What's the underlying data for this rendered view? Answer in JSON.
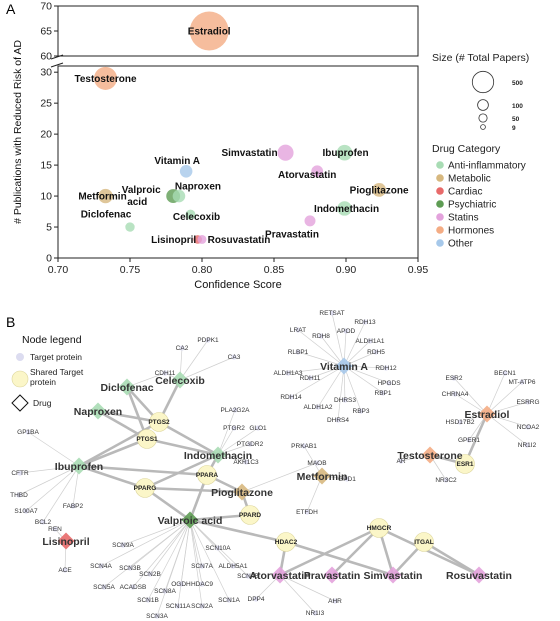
{
  "panel_a_label": "A",
  "panel_b_label": "B",
  "chart_data": {
    "type": "scatter",
    "xlabel": "Confidence Score",
    "ylabel": "# Publications with Reduced Risk of AD",
    "xlim": [
      0.7,
      0.95
    ],
    "x_ticks": [
      "0.70",
      "0.75",
      "0.80",
      "0.85",
      "0.90",
      "0.95"
    ],
    "y_ticks_upper": [
      "60",
      "65",
      "70"
    ],
    "y_ticks_lower": [
      "0",
      "5",
      "10",
      "15",
      "20",
      "25",
      "30"
    ],
    "ylim_lower": [
      0,
      31
    ],
    "ylim_upper": [
      60,
      70
    ],
    "axis_break": true,
    "grid": false,
    "size_legend": {
      "title": "Size (# Total Papers)",
      "entries": [
        {
          "label": "500",
          "value": 500
        },
        {
          "label": "100",
          "value": 100
        },
        {
          "label": "50",
          "value": 50
        },
        {
          "label": "9",
          "value": 9
        }
      ]
    },
    "category_legend": {
      "title": "Drug Category",
      "entries": [
        {
          "name": "Anti-inflammatory",
          "color": "#a8dcb4"
        },
        {
          "name": "Metabolic",
          "color": "#d7b87f"
        },
        {
          "name": "Cardiac",
          "color": "#e86a6a"
        },
        {
          "name": "Psychiatric",
          "color": "#5e9c54"
        },
        {
          "name": "Statins",
          "color": "#e3a2dc"
        },
        {
          "name": "Hormones",
          "color": "#f4ac84"
        },
        {
          "name": "Other",
          "color": "#a6c8ea"
        }
      ]
    },
    "points": [
      {
        "name": "Estradiol",
        "x": 0.805,
        "y": 65,
        "size": 500,
        "category": "Hormones"
      },
      {
        "name": "Testosterone",
        "x": 0.733,
        "y": 29,
        "size": 150,
        "category": "Hormones"
      },
      {
        "name": "Simvastatin",
        "x": 0.858,
        "y": 17,
        "size": 60,
        "category": "Statins"
      },
      {
        "name": "Ibuprofen",
        "x": 0.899,
        "y": 17,
        "size": 55,
        "category": "Anti-inflammatory"
      },
      {
        "name": "Atorvastatin",
        "x": 0.88,
        "y": 14,
        "size": 25,
        "category": "Statins"
      },
      {
        "name": "Vitamin A",
        "x": 0.789,
        "y": 14,
        "size": 30,
        "category": "Other"
      },
      {
        "name": "Pioglitazone",
        "x": 0.923,
        "y": 11,
        "size": 40,
        "category": "Metabolic"
      },
      {
        "name": "Metformin",
        "x": 0.733,
        "y": 10,
        "size": 45,
        "category": "Metabolic"
      },
      {
        "name": "Valproic acid",
        "x": 0.78,
        "y": 10,
        "size": 40,
        "category": "Psychiatric"
      },
      {
        "name": "Naproxen",
        "x": 0.784,
        "y": 10,
        "size": 30,
        "category": "Anti-inflammatory"
      },
      {
        "name": "Indomethacin",
        "x": 0.899,
        "y": 8,
        "size": 45,
        "category": "Anti-inflammatory"
      },
      {
        "name": "Celecoxib",
        "x": 0.792,
        "y": 7,
        "size": 15,
        "category": "Anti-inflammatory"
      },
      {
        "name": "Pravastatin",
        "x": 0.875,
        "y": 6,
        "size": 20,
        "category": "Statins"
      },
      {
        "name": "Diclofenac",
        "x": 0.75,
        "y": 5,
        "size": 12,
        "category": "Anti-inflammatory"
      },
      {
        "name": "Lisinopril",
        "x": 0.797,
        "y": 3,
        "size": 9,
        "category": "Cardiac"
      },
      {
        "name": "Rosuvastatin",
        "x": 0.8,
        "y": 3,
        "size": 10,
        "category": "Statins"
      }
    ]
  },
  "network": {
    "legend_title": "Node legend",
    "legend_items": [
      {
        "label": "Target protein"
      },
      {
        "label": "Shared Target protein"
      },
      {
        "label": "Drug"
      }
    ],
    "drug_nodes": [
      {
        "id": "Diclofenac",
        "label": "Diclofenac",
        "color": "#a8dcb4"
      },
      {
        "id": "Celecoxib",
        "label": "Celecoxib",
        "color": "#a8dcb4"
      },
      {
        "id": "Naproxen",
        "label": "Naproxen",
        "color": "#a8dcb4"
      },
      {
        "id": "Ibuprofen",
        "label": "Ibuprofen",
        "color": "#a8dcb4"
      },
      {
        "id": "Indomethacin",
        "label": "Indomethacin",
        "color": "#a8dcb4"
      },
      {
        "id": "Pioglitazone",
        "label": "Pioglitazone",
        "color": "#d7b87f"
      },
      {
        "id": "Metformin",
        "label": "Metformin",
        "color": "#d7b87f"
      },
      {
        "id": "ValproicAcid",
        "label": "Valproic acid",
        "color": "#5e9c54"
      },
      {
        "id": "Lisinopril",
        "label": "Lisinopril",
        "color": "#e86a6a"
      },
      {
        "id": "VitaminA",
        "label": "Vitamin A",
        "color": "#a6c8ea"
      },
      {
        "id": "Estradiol",
        "label": "Estradiol",
        "color": "#f4ac84"
      },
      {
        "id": "Testosterone",
        "label": "Testosterone",
        "color": "#f4ac84"
      },
      {
        "id": "Atorvastatin",
        "label": "Atorvastatin",
        "color": "#e3a2dc"
      },
      {
        "id": "Pravastatin",
        "label": "Pravastatin",
        "color": "#e3a2dc"
      },
      {
        "id": "Simvastatin",
        "label": "Simvastatin",
        "color": "#e3a2dc"
      },
      {
        "id": "Rosuvastatin",
        "label": "Rosuvastatin",
        "color": "#e3a2dc"
      }
    ],
    "shared_nodes": [
      {
        "id": "PTGS2",
        "label": "PTGS2"
      },
      {
        "id": "PTGS1",
        "label": "PTGS1"
      },
      {
        "id": "PPARA",
        "label": "PPARA"
      },
      {
        "id": "PPARG",
        "label": "PPARG"
      },
      {
        "id": "PPARD",
        "label": "PPARD"
      },
      {
        "id": "HDAC2",
        "label": "HDAC2"
      },
      {
        "id": "HMGCR",
        "label": "HMGCR"
      },
      {
        "id": "ITGAL",
        "label": "ITGAL"
      },
      {
        "id": "ESR1",
        "label": "ESR1"
      }
    ],
    "target_nodes": [
      {
        "id": "CA2",
        "label": "CA2"
      },
      {
        "id": "PDPK1",
        "label": "PDPK1"
      },
      {
        "id": "CA3",
        "label": "CA3"
      },
      {
        "id": "CDH11",
        "label": "CDH11"
      },
      {
        "id": "PLA2G2A",
        "label": "PLA2G2A"
      },
      {
        "id": "PTGR2",
        "label": "PTGR2"
      },
      {
        "id": "GLO1",
        "label": "GLO1"
      },
      {
        "id": "PTGDR2",
        "label": "PTGDR2"
      },
      {
        "id": "AKR1C3",
        "label": "AKR1C3"
      },
      {
        "id": "GP1BA",
        "label": "GP1BA"
      },
      {
        "id": "CFTR",
        "label": "CFTR"
      },
      {
        "id": "THBD",
        "label": "THBD"
      },
      {
        "id": "S100A7",
        "label": "S100A7"
      },
      {
        "id": "BCL2",
        "label": "BCL2"
      },
      {
        "id": "FABP2",
        "label": "FABP2"
      },
      {
        "id": "PRKAB1",
        "label": "PRKAB1"
      },
      {
        "id": "MAOB",
        "label": "MAOB"
      },
      {
        "id": "GPD1",
        "label": "GPD1"
      },
      {
        "id": "ETFDH",
        "label": "ETFDH"
      },
      {
        "id": "REN",
        "label": "REN"
      },
      {
        "id": "ACE",
        "label": "ACE"
      },
      {
        "id": "SCN9A",
        "label": "SCN9A"
      },
      {
        "id": "SCN4A",
        "label": "SCN4A"
      },
      {
        "id": "SCN3B",
        "label": "SCN3B"
      },
      {
        "id": "SCN2B",
        "label": "SCN2B"
      },
      {
        "id": "SCN7A",
        "label": "SCN7A"
      },
      {
        "id": "SCN10A",
        "label": "SCN10A"
      },
      {
        "id": "ALDH5A1",
        "label": "ALDH5A1"
      },
      {
        "id": "SCN5A",
        "label": "SCN5A"
      },
      {
        "id": "ACADSB",
        "label": "ACADSB"
      },
      {
        "id": "SCN8A",
        "label": "SCN8A"
      },
      {
        "id": "OGDH",
        "label": "OGDH"
      },
      {
        "id": "HDAC9",
        "label": "HDAC9"
      },
      {
        "id": "SCN4B",
        "label": "SCN4B"
      },
      {
        "id": "SCN1B",
        "label": "SCN1B"
      },
      {
        "id": "SCN11A",
        "label": "SCN11A"
      },
      {
        "id": "SCN2A",
        "label": "SCN2A"
      },
      {
        "id": "SCN1A",
        "label": "SCN1A"
      },
      {
        "id": "SCN3A",
        "label": "SCN3A"
      },
      {
        "id": "RETSAT",
        "label": "RETSAT"
      },
      {
        "id": "LRAT",
        "label": "LRAT"
      },
      {
        "id": "RDH13",
        "label": "RDH13"
      },
      {
        "id": "RDH8",
        "label": "RDH8"
      },
      {
        "id": "APOD",
        "label": "APOD"
      },
      {
        "id": "RLBP1",
        "label": "RLBP1"
      },
      {
        "id": "ALDH1A1",
        "label": "ALDH1A1"
      },
      {
        "id": "RDH5",
        "label": "RDH5"
      },
      {
        "id": "ALDH1A3",
        "label": "ALDH1A3"
      },
      {
        "id": "RDH11",
        "label": "RDH11"
      },
      {
        "id": "RDH12",
        "label": "RDH12"
      },
      {
        "id": "HPGDS",
        "label": "HPGDS"
      },
      {
        "id": "RBP1",
        "label": "RBP1"
      },
      {
        "id": "RDH14",
        "label": "RDH14"
      },
      {
        "id": "DHRS3",
        "label": "DHRS3"
      },
      {
        "id": "ALDH1A2",
        "label": "ALDH1A2"
      },
      {
        "id": "RBP3",
        "label": "RBP3"
      },
      {
        "id": "DHRS4",
        "label": "DHRS4"
      },
      {
        "id": "ESR2",
        "label": "ESR2"
      },
      {
        "id": "BECN1",
        "label": "BECN1"
      },
      {
        "id": "MT-ATP6",
        "label": "MT-ATP6"
      },
      {
        "id": "CHRNA4",
        "label": "CHRNA4"
      },
      {
        "id": "ESRRG",
        "label": "ESRRG"
      },
      {
        "id": "HSD17B2",
        "label": "HSD17B2"
      },
      {
        "id": "NCOA2",
        "label": "NCOA2"
      },
      {
        "id": "NR1I2",
        "label": "NR1I2"
      },
      {
        "id": "GPER1",
        "label": "GPER1"
      },
      {
        "id": "AR",
        "label": "AR"
      },
      {
        "id": "NR3C2",
        "label": "NR3C2"
      },
      {
        "id": "DPP4",
        "label": "DPP4"
      },
      {
        "id": "AHR",
        "label": "AHR"
      },
      {
        "id": "NR1I3",
        "label": "NR1I3"
      }
    ]
  }
}
